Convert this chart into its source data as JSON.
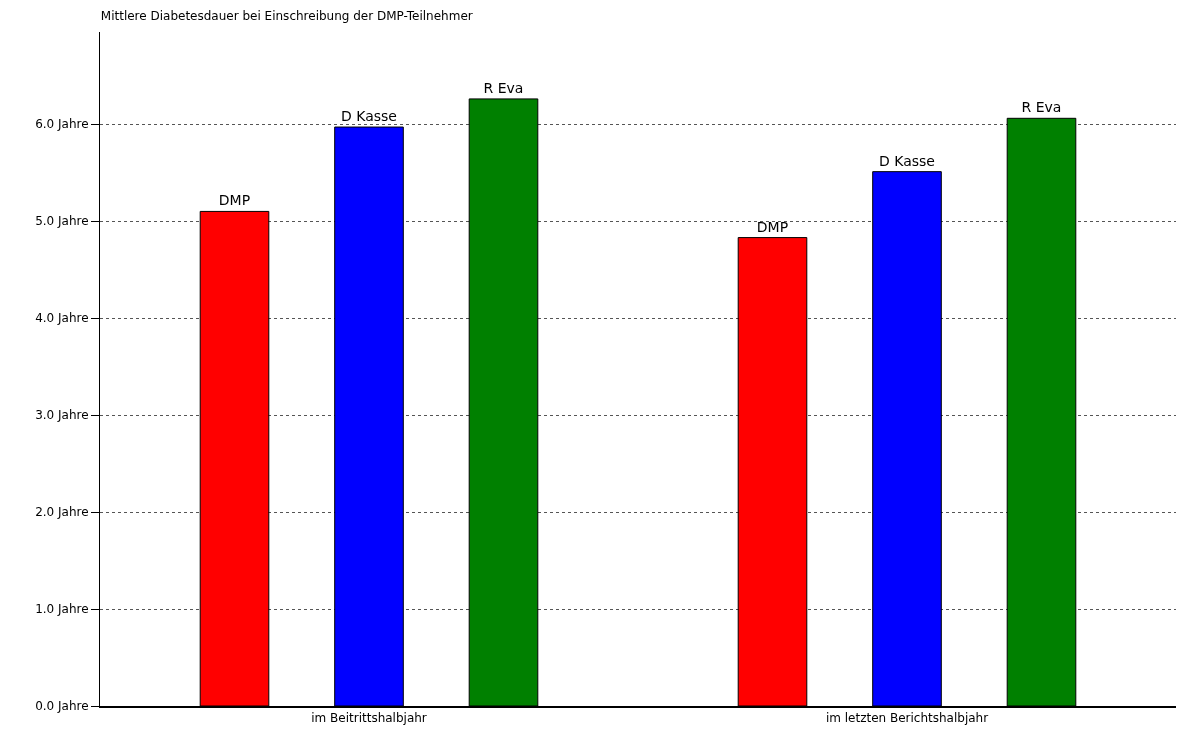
{
  "chart_data": {
    "type": "bar",
    "title": "Mittlere Diabetesdauer bei Einschreibung der DMP-Teilnehmer",
    "categories": [
      "im Beitrittshalbjahr",
      "im letzten Berichtshalbjahr"
    ],
    "series": [
      {
        "name": "DMP",
        "color": "#ff0000",
        "values": [
          5.1,
          4.83
        ]
      },
      {
        "name": "D Kasse",
        "color": "#0000ff",
        "values": [
          5.97,
          5.51
        ]
      },
      {
        "name": "R Eva",
        "color": "#008000",
        "values": [
          6.26,
          6.06
        ]
      }
    ],
    "ylim": [
      0,
      6.95
    ],
    "yticks": [
      {
        "value": 0,
        "label": "0.0 Jahre"
      },
      {
        "value": 1,
        "label": "1.0 Jahre"
      },
      {
        "value": 2,
        "label": "2.0 Jahre"
      },
      {
        "value": 3,
        "label": "3.0 Jahre"
      },
      {
        "value": 4,
        "label": "4.0 Jahre"
      },
      {
        "value": 5,
        "label": "5.0 Jahre"
      },
      {
        "value": 6,
        "label": "6.0 Jahre"
      }
    ],
    "grid": "y",
    "legend": false
  }
}
